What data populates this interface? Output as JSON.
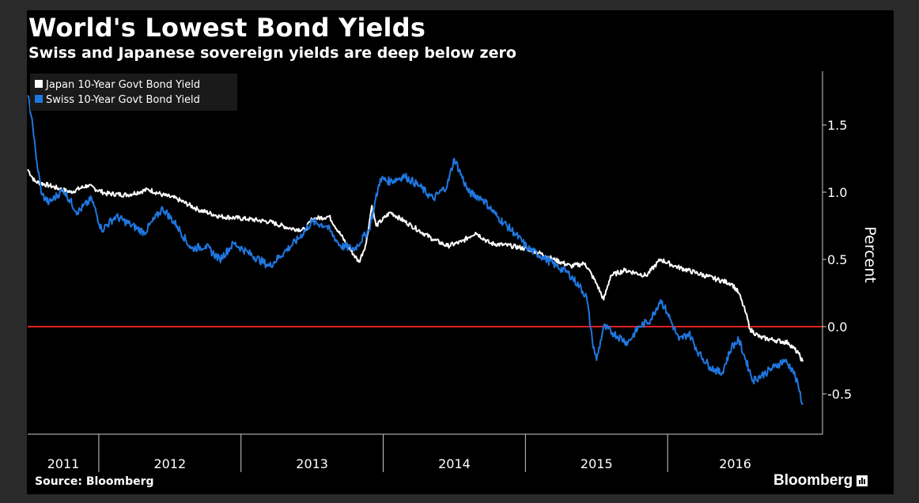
{
  "header": {
    "title": "World's Lowest Bond Yields",
    "subtitle": "Swiss and Japanese sovereign yields are deep below zero"
  },
  "footer": {
    "source": "Source: Bloomberg",
    "brand": "Bloomberg"
  },
  "colors": {
    "background": "#000000",
    "outer": "#2a2a2a",
    "japan": "#ffffff",
    "swiss": "#1f77e0",
    "zero_line": "#e02020",
    "axis": "#cccccc"
  },
  "chart_data": {
    "type": "line",
    "title": "World's Lowest Bond Yields",
    "subtitle": "Swiss and Japanese sovereign yields are deep below zero",
    "xlabel": "",
    "ylabel": "Percent",
    "xlim": [
      2011.0,
      2016.45
    ],
    "ylim": [
      -0.8,
      1.9
    ],
    "yticks": [
      1.5,
      1.0,
      0.5,
      0.0,
      -0.5
    ],
    "ytick_labels": [
      "1.5",
      "1.0",
      "0.5",
      "0.0",
      "-0.5"
    ],
    "x_categories": [
      "2011",
      "2012",
      "2013",
      "2014",
      "2015",
      "2016"
    ],
    "x_boundaries": [
      2011.5,
      2012.5,
      2013.5,
      2014.5,
      2015.5
    ],
    "reference_line": {
      "y": 0.0,
      "color": "#e02020"
    },
    "legend": {
      "placement": "top-left",
      "entries": [
        "Japan 10-Year Govt Bond Yield",
        "Swiss 10-Year Govt Bond Yield"
      ]
    },
    "series": [
      {
        "name": "Japan 10-Year Govt Bond Yield",
        "color": "#ffffff",
        "points": [
          [
            2011.0,
            1.17
          ],
          [
            2011.05,
            1.08
          ],
          [
            2011.15,
            1.05
          ],
          [
            2011.3,
            1.0
          ],
          [
            2011.42,
            1.05
          ],
          [
            2011.55,
            0.99
          ],
          [
            2011.7,
            0.98
          ],
          [
            2011.85,
            1.02
          ],
          [
            2011.95,
            0.98
          ],
          [
            2012.05,
            0.95
          ],
          [
            2012.2,
            0.87
          ],
          [
            2012.35,
            0.82
          ],
          [
            2012.55,
            0.8
          ],
          [
            2012.7,
            0.78
          ],
          [
            2012.85,
            0.73
          ],
          [
            2012.95,
            0.72
          ],
          [
            2013.0,
            0.8
          ],
          [
            2013.12,
            0.82
          ],
          [
            2013.25,
            0.6
          ],
          [
            2013.33,
            0.48
          ],
          [
            2013.38,
            0.62
          ],
          [
            2013.42,
            0.9
          ],
          [
            2013.45,
            0.75
          ],
          [
            2013.55,
            0.85
          ],
          [
            2013.7,
            0.75
          ],
          [
            2013.85,
            0.65
          ],
          [
            2013.95,
            0.6
          ],
          [
            2014.05,
            0.63
          ],
          [
            2014.15,
            0.7
          ],
          [
            2014.25,
            0.62
          ],
          [
            2014.4,
            0.6
          ],
          [
            2014.55,
            0.57
          ],
          [
            2014.7,
            0.5
          ],
          [
            2014.82,
            0.45
          ],
          [
            2014.92,
            0.47
          ],
          [
            2015.0,
            0.32
          ],
          [
            2015.05,
            0.2
          ],
          [
            2015.1,
            0.38
          ],
          [
            2015.2,
            0.42
          ],
          [
            2015.35,
            0.38
          ],
          [
            2015.45,
            0.5
          ],
          [
            2015.55,
            0.45
          ],
          [
            2015.7,
            0.4
          ],
          [
            2015.85,
            0.35
          ],
          [
            2015.95,
            0.32
          ],
          [
            2016.0,
            0.25
          ],
          [
            2016.05,
            0.1
          ],
          [
            2016.08,
            -0.02
          ],
          [
            2016.15,
            -0.08
          ],
          [
            2016.25,
            -0.1
          ],
          [
            2016.35,
            -0.12
          ],
          [
            2016.42,
            -0.2
          ],
          [
            2016.45,
            -0.26
          ]
        ]
      },
      {
        "name": "Swiss 10-Year Govt Bond Yield",
        "color": "#1f77e0",
        "points": [
          [
            2011.0,
            1.72
          ],
          [
            2011.03,
            1.55
          ],
          [
            2011.06,
            1.25
          ],
          [
            2011.1,
            0.98
          ],
          [
            2011.15,
            0.92
          ],
          [
            2011.25,
            1.02
          ],
          [
            2011.35,
            0.85
          ],
          [
            2011.45,
            0.95
          ],
          [
            2011.52,
            0.72
          ],
          [
            2011.62,
            0.82
          ],
          [
            2011.72,
            0.76
          ],
          [
            2011.82,
            0.7
          ],
          [
            2011.95,
            0.88
          ],
          [
            2012.05,
            0.75
          ],
          [
            2012.15,
            0.58
          ],
          [
            2012.25,
            0.6
          ],
          [
            2012.35,
            0.5
          ],
          [
            2012.45,
            0.62
          ],
          [
            2012.55,
            0.55
          ],
          [
            2012.7,
            0.45
          ],
          [
            2012.8,
            0.55
          ],
          [
            2012.9,
            0.65
          ],
          [
            2013.0,
            0.78
          ],
          [
            2013.1,
            0.75
          ],
          [
            2013.2,
            0.6
          ],
          [
            2013.3,
            0.58
          ],
          [
            2013.4,
            0.72
          ],
          [
            2013.48,
            1.1
          ],
          [
            2013.55,
            1.08
          ],
          [
            2013.65,
            1.12
          ],
          [
            2013.75,
            1.05
          ],
          [
            2013.85,
            0.95
          ],
          [
            2013.95,
            1.05
          ],
          [
            2014.0,
            1.25
          ],
          [
            2014.1,
            1.0
          ],
          [
            2014.2,
            0.95
          ],
          [
            2014.3,
            0.82
          ],
          [
            2014.42,
            0.7
          ],
          [
            2014.52,
            0.58
          ],
          [
            2014.62,
            0.52
          ],
          [
            2014.72,
            0.45
          ],
          [
            2014.8,
            0.4
          ],
          [
            2014.88,
            0.3
          ],
          [
            2014.93,
            0.22
          ],
          [
            2014.97,
            -0.1
          ],
          [
            2015.0,
            -0.25
          ],
          [
            2015.05,
            0.0
          ],
          [
            2015.12,
            -0.05
          ],
          [
            2015.22,
            -0.12
          ],
          [
            2015.3,
            0.0
          ],
          [
            2015.38,
            0.05
          ],
          [
            2015.45,
            0.2
          ],
          [
            2015.5,
            0.1
          ],
          [
            2015.58,
            -0.1
          ],
          [
            2015.65,
            -0.05
          ],
          [
            2015.72,
            -0.2
          ],
          [
            2015.8,
            -0.3
          ],
          [
            2015.88,
            -0.35
          ],
          [
            2015.95,
            -0.15
          ],
          [
            2016.0,
            -0.1
          ],
          [
            2016.05,
            -0.25
          ],
          [
            2016.1,
            -0.4
          ],
          [
            2016.18,
            -0.35
          ],
          [
            2016.25,
            -0.3
          ],
          [
            2016.32,
            -0.25
          ],
          [
            2016.38,
            -0.32
          ],
          [
            2016.42,
            -0.45
          ],
          [
            2016.45,
            -0.58
          ]
        ]
      }
    ]
  }
}
